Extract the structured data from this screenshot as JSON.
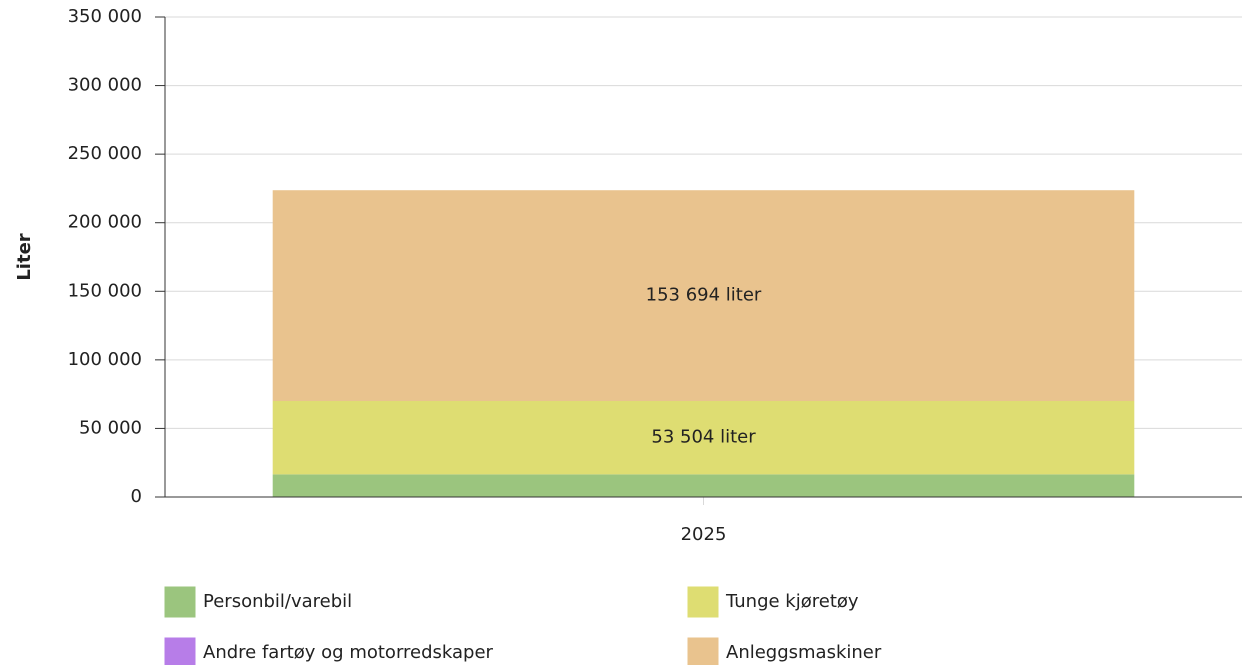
{
  "chart_data": {
    "type": "stacked_bar",
    "y_label": "Liter",
    "categories": [
      "2025"
    ],
    "series": [
      {
        "name": "Personbil/varebil",
        "color": "#9bc57e",
        "values": [
          16500
        ]
      },
      {
        "name": "Tunge kjøretøy",
        "color": "#dedd72",
        "values": [
          53504
        ],
        "value_labels": [
          "53 504 liter"
        ]
      },
      {
        "name": "Andre fartøy og motorredskaper",
        "color": "#b77de8",
        "values": [
          0
        ]
      },
      {
        "name": "Anleggsmaskiner",
        "color": "#e9c38e",
        "values": [
          153694
        ],
        "value_labels": [
          "153 694 liter"
        ]
      }
    ],
    "ylim": [
      0,
      350000
    ],
    "yticks": [
      0,
      {
        "value": 50000,
        "label": "50 000"
      },
      {
        "value": 100000,
        "label": "100 000"
      },
      {
        "value": 150000,
        "label": "150 000"
      },
      {
        "value": 200000,
        "label": "200 000"
      },
      {
        "value": 250000,
        "label": "250 000"
      },
      {
        "value": 300000,
        "label": "300 000"
      },
      {
        "value": 350000,
        "label": "350 000"
      }
    ],
    "grid": true
  }
}
